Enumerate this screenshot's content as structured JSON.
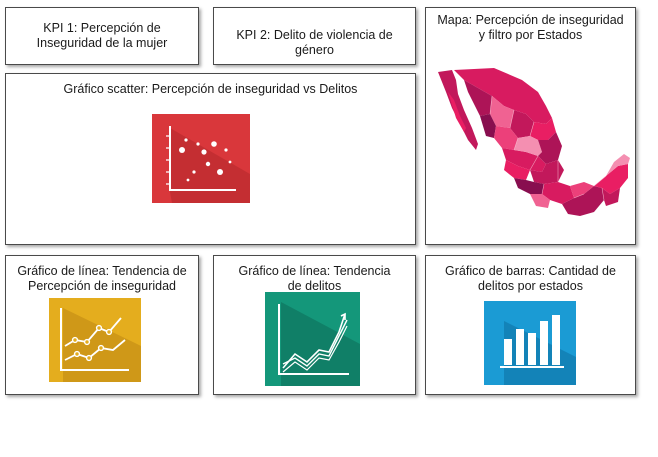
{
  "kpi1": {
    "title": "KPI 1: Percepción de Inseguridad de la mujer"
  },
  "kpi2": {
    "title": "KPI 2: Delito de violencia de género"
  },
  "map": {
    "title": "Mapa: Percepción de inseguridad y filtro por Estados",
    "icon": "mexico-map-icon"
  },
  "scatter": {
    "title": "Gráfico scatter: Percepción de inseguridad vs Delitos",
    "icon": "scatter-chart-icon",
    "color": "#d9373b"
  },
  "line1": {
    "title": "Gráfico de línea: Tendencia de Percepción de inseguridad",
    "icon": "line-chart-icon",
    "color": "#e4ad1e"
  },
  "line2": {
    "title": "Gráfico de línea: Tendencia de delitos",
    "icon": "line-chart-icon",
    "color": "#14977a"
  },
  "bars": {
    "title": "Gráfico de barras: Cantidad de delitos por estados",
    "icon": "bar-chart-icon",
    "color": "#1b9bd4"
  }
}
